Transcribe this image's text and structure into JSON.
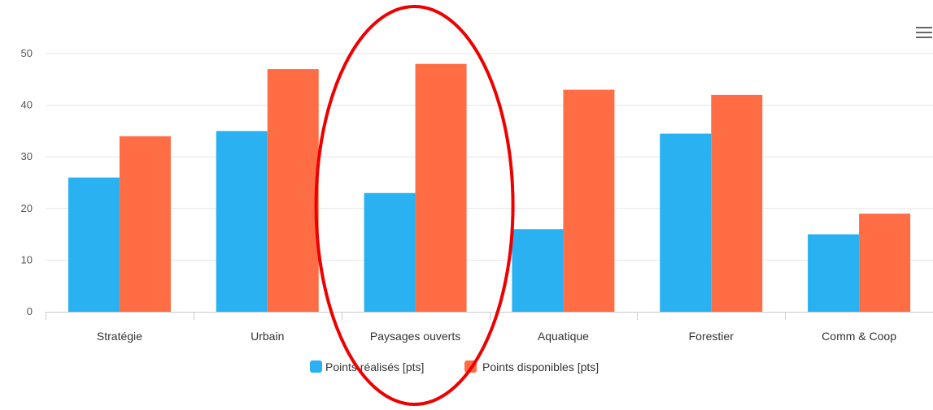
{
  "chart_data": {
    "type": "bar",
    "categories": [
      "Stratégie",
      "Urbain",
      "Paysages ouverts",
      "Aquatique",
      "Forestier",
      "Comm & Coop"
    ],
    "series": [
      {
        "name": "Points réalisés [pts]",
        "color": "#29b1f1",
        "values": [
          26,
          35,
          23,
          16,
          34.5,
          15
        ]
      },
      {
        "name": "Points disponibles [pts]",
        "color": "#ff6d45",
        "values": [
          34,
          47,
          48,
          43,
          42,
          19
        ]
      }
    ],
    "ylim": [
      0,
      50
    ],
    "yticks": [
      0,
      10,
      20,
      30,
      40,
      50
    ],
    "grid": true,
    "legend_position": "bottom-center",
    "highlight": {
      "category": "Paysages ouverts",
      "shape": "ellipse",
      "color": "#ee0000"
    }
  },
  "toolbar": {
    "menu_icon": "hamburger-menu-icon"
  }
}
